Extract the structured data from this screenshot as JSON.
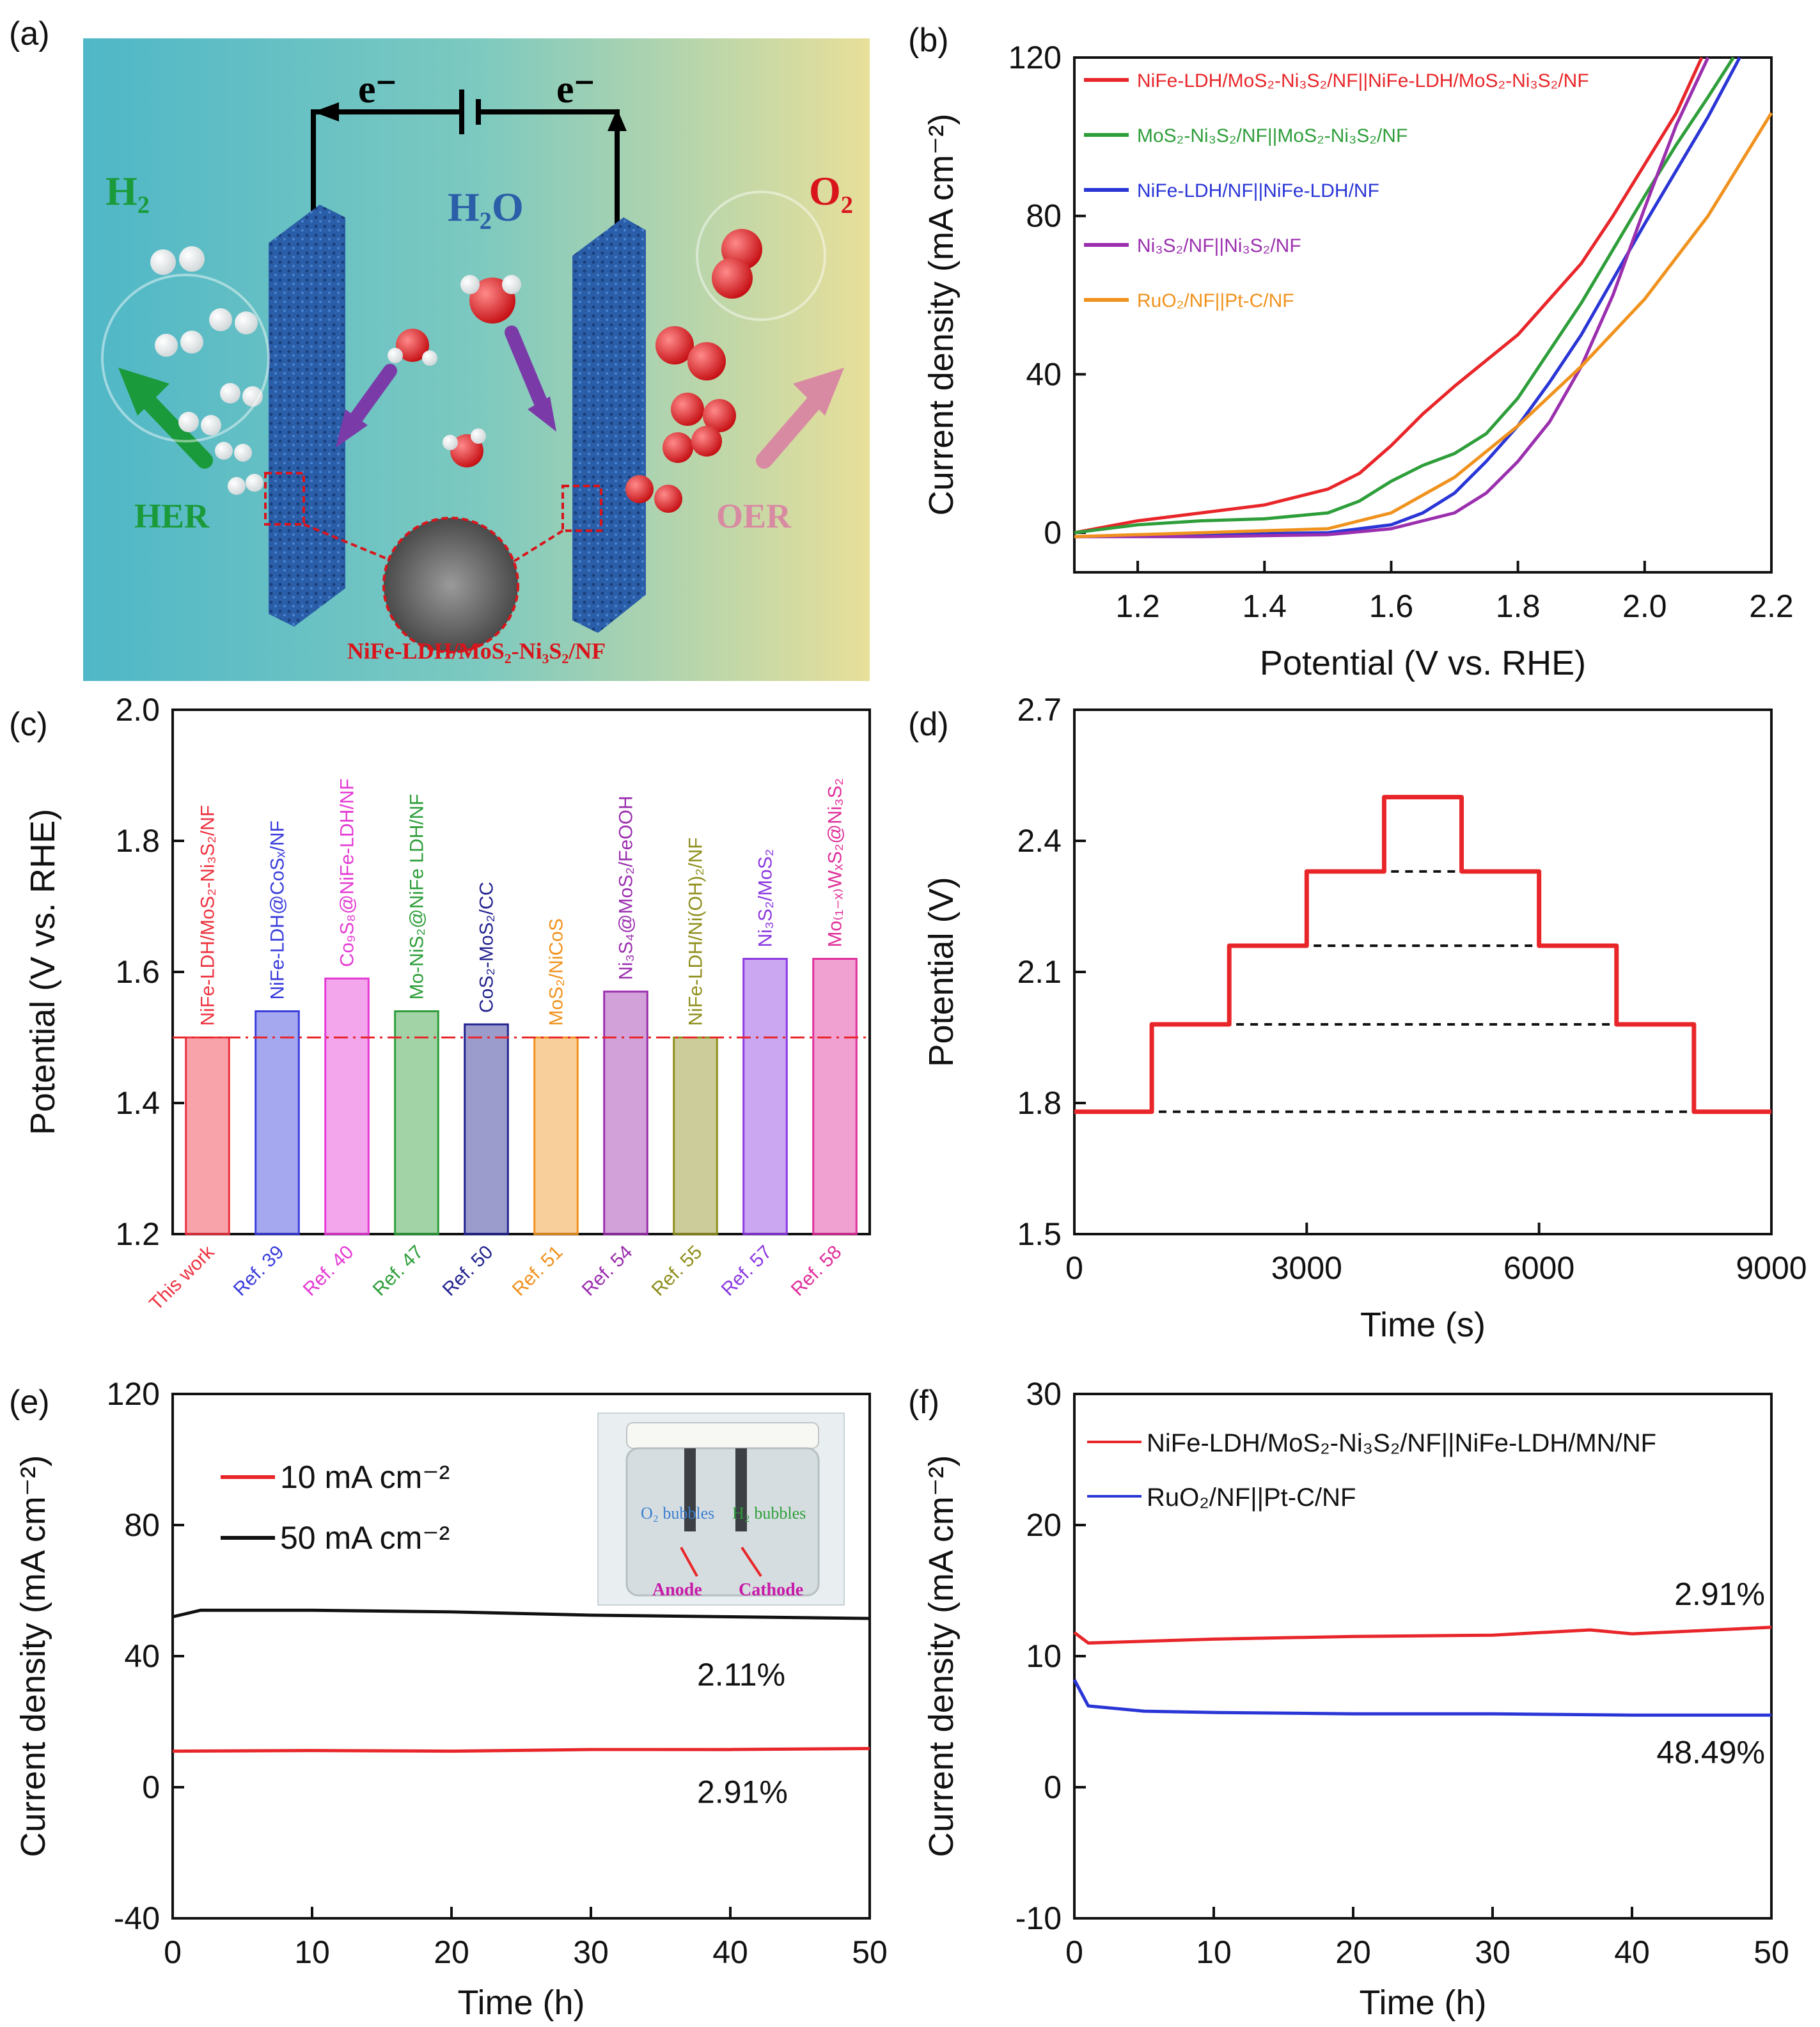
{
  "panel_letters": [
    "(a)",
    "(b)",
    "(c)",
    "(d)",
    "(e)",
    "(f)"
  ],
  "schematic": {
    "e_left": "e⁻",
    "e_right": "e⁻",
    "h2": "H₂",
    "o2": "O₂",
    "h2o": "H₂O",
    "her": "HER",
    "oer": "OER",
    "catalyst": "NiFe-LDH/MoS₂-Ni₃S₂/NF",
    "colors": {
      "bg_left": "#4fb7c7",
      "bg_right": "#e8df9a",
      "electrode": "#2a5ea8",
      "her": "#1a9a3a",
      "oer": "#d98aa3",
      "o2": "#d9141b"
    }
  },
  "chart_data": [
    {
      "id": "b",
      "type": "line",
      "title": "",
      "xlabel": "Potential (V vs. RHE)",
      "ylabel": "Current density (mA cm⁻²)",
      "xlim": [
        1.1,
        2.2
      ],
      "ylim": [
        -10,
        120
      ],
      "xticks": [
        1.2,
        1.4,
        1.6,
        1.8,
        2.0,
        2.2
      ],
      "xtick_labels": [
        "1.2",
        "1.4",
        "1.6",
        "1.8",
        "2.0",
        "2.2"
      ],
      "yticks": [
        0,
        40,
        80,
        120
      ],
      "ytick_labels": [
        "0",
        "40",
        "80",
        "120"
      ],
      "legend_position": "top-left",
      "series": [
        {
          "name": "NiFe-LDH/MoS₂-Ni₃S₂/NF||NiFe-LDH/MoS₂-Ni₃S₂/NF",
          "color": "#e8262a",
          "x": [
            1.1,
            1.2,
            1.3,
            1.4,
            1.5,
            1.55,
            1.6,
            1.65,
            1.7,
            1.8,
            1.9,
            1.95,
            2.0,
            2.05,
            2.09
          ],
          "y": [
            0,
            3,
            5,
            7,
            11,
            15,
            22,
            30,
            37,
            50,
            68,
            80,
            93,
            106,
            120
          ]
        },
        {
          "name": "MoS₂-Ni₃S₂/NF||MoS₂-Ni₃S₂/NF",
          "color": "#2e9e3a",
          "x": [
            1.1,
            1.2,
            1.3,
            1.4,
            1.5,
            1.55,
            1.6,
            1.65,
            1.7,
            1.75,
            1.8,
            1.9,
            2.0,
            2.05,
            2.1,
            2.14
          ],
          "y": [
            0,
            2,
            3,
            3.5,
            5,
            8,
            13,
            17,
            20,
            25,
            34,
            58,
            85,
            98,
            110,
            120
          ]
        },
        {
          "name": "NiFe-LDH/NF||NiFe-LDH/NF",
          "color": "#2a35d6",
          "x": [
            1.1,
            1.3,
            1.5,
            1.6,
            1.65,
            1.7,
            1.75,
            1.8,
            1.85,
            1.9,
            2.0,
            2.1,
            2.15
          ],
          "y": [
            -1,
            -0.5,
            0,
            2,
            5,
            10,
            18,
            27,
            38,
            50,
            78,
            105,
            120
          ]
        },
        {
          "name": "Ni₃S₂/NF||Ni₃S₂/NF",
          "color": "#9b2fae",
          "x": [
            1.1,
            1.3,
            1.5,
            1.6,
            1.7,
            1.75,
            1.8,
            1.85,
            1.9,
            1.95,
            2.0,
            2.05,
            2.1
          ],
          "y": [
            -1,
            -1,
            -0.5,
            1,
            5,
            10,
            18,
            28,
            42,
            60,
            82,
            103,
            120
          ]
        },
        {
          "name": "RuO₂/NF||Pt-C/NF",
          "color": "#f0921e",
          "x": [
            1.1,
            1.3,
            1.5,
            1.6,
            1.7,
            1.8,
            1.9,
            2.0,
            2.1,
            2.2
          ],
          "y": [
            -1,
            0,
            1,
            5,
            14,
            27,
            42,
            59,
            80,
            106
          ]
        }
      ]
    },
    {
      "id": "c",
      "type": "bar",
      "title": "",
      "xlabel": "",
      "ylabel": "Potential (V vs. RHE)",
      "ylim": [
        1.2,
        2.0
      ],
      "yticks": [
        1.2,
        1.4,
        1.6,
        1.8,
        2.0
      ],
      "ytick_labels": [
        "1.2",
        "1.4",
        "1.6",
        "1.8",
        "2.0"
      ],
      "reference_line": 1.5,
      "categories": [
        "This work",
        "Ref. 39",
        "Ref. 40",
        "Ref. 47",
        "Ref. 50",
        "Ref. 51",
        "Ref. 54",
        "Ref. 55",
        "Ref. 57",
        "Ref. 58"
      ],
      "values": [
        1.5,
        1.54,
        1.59,
        1.54,
        1.52,
        1.5,
        1.57,
        1.5,
        1.62,
        1.62
      ],
      "colors": [
        "#ee3340",
        "#3a3ddb",
        "#e43ad4",
        "#2e9e3a",
        "#23238f",
        "#f0921e",
        "#9b2fae",
        "#8f8f1e",
        "#8b39e0",
        "#e02f9a"
      ],
      "bar_labels": [
        "NiFe-LDH/MoS₂-Ni₃S₂/NF",
        "NiFe-LDH@CoSₓ/NF",
        "Co₉S₈@NiFe-LDH/NF",
        "Mo-NiS₂@NiFe LDH/NF",
        "CoS₂-MoS₂/CC",
        "MoS₂/NiCoS",
        "Ni₃S₄@MoS₂/FeOOH",
        "NiFe-LDH/Ni(OH)₂/NF",
        "Ni₃S₂/MoS₂",
        "Mo₍₁₋ₓ₎WₓS₂@Ni₃S₂"
      ]
    },
    {
      "id": "d",
      "type": "line",
      "title": "",
      "xlabel": "Time (s)",
      "ylabel": "Potential (V)",
      "xlim": [
        0,
        9000
      ],
      "ylim": [
        1.5,
        2.7
      ],
      "xticks": [
        0,
        3000,
        6000,
        9000
      ],
      "xtick_labels": [
        "0",
        "3000",
        "6000",
        "9000"
      ],
      "yticks": [
        1.5,
        1.8,
        2.1,
        2.4,
        2.7
      ],
      "ytick_labels": [
        "1.5",
        "1.8",
        "2.1",
        "2.4",
        "2.7"
      ],
      "series": [
        {
          "name": "step potential",
          "color": "#e8262a",
          "x": [
            0,
            1000,
            1000,
            2000,
            2000,
            3000,
            3000,
            4000,
            4000,
            5000,
            5000,
            6000,
            6000,
            7000,
            7000,
            8000,
            8000,
            9000
          ],
          "y": [
            1.78,
            1.78,
            1.98,
            1.98,
            2.16,
            2.16,
            2.33,
            2.33,
            2.5,
            2.5,
            2.33,
            2.33,
            2.16,
            2.16,
            1.98,
            1.98,
            1.78,
            1.78
          ]
        }
      ],
      "reference_lines": [
        {
          "y": 1.78,
          "x0": 0,
          "x1": 9000
        },
        {
          "y": 1.98,
          "x0": 1000,
          "x1": 8000
        },
        {
          "y": 2.16,
          "x0": 2000,
          "x1": 7000
        },
        {
          "y": 2.33,
          "x0": 3000,
          "x1": 6000
        }
      ]
    },
    {
      "id": "e",
      "type": "line",
      "title": "",
      "xlabel": "Time (h)",
      "ylabel": "Current density (mA cm⁻²)",
      "xlim": [
        0,
        50
      ],
      "ylim": [
        -40,
        120
      ],
      "xticks": [
        0,
        10,
        20,
        30,
        40,
        50
      ],
      "xtick_labels": [
        "0",
        "10",
        "20",
        "30",
        "40",
        "50"
      ],
      "yticks": [
        -40,
        0,
        40,
        80,
        120
      ],
      "ytick_labels": [
        "-40",
        "0",
        "40",
        "80",
        "120"
      ],
      "legend_position": "top-left",
      "series": [
        {
          "name": "10 mA cm⁻²",
          "color": "#e8262a",
          "x": [
            0,
            10,
            20,
            30,
            40,
            50
          ],
          "y": [
            11,
            11.2,
            11,
            11.5,
            11.5,
            11.8
          ],
          "annotation": "2.91%"
        },
        {
          "name": "50 mA cm⁻²",
          "color": "#111111",
          "x": [
            0,
            2,
            10,
            20,
            30,
            40,
            50
          ],
          "y": [
            52,
            54,
            54,
            53.5,
            52.5,
            52,
            51.5
          ],
          "annotation": "2.11%"
        }
      ],
      "inset_labels": {
        "o2": "O₂ bubbles",
        "h2": "H₂ bubbles",
        "anode": "Anode",
        "cathode": "Cathode"
      }
    },
    {
      "id": "f",
      "type": "line",
      "title": "",
      "xlabel": "Time (h)",
      "ylabel": "Current density (mA cm⁻²)",
      "xlim": [
        0,
        50
      ],
      "ylim": [
        -10,
        30
      ],
      "xticks": [
        0,
        10,
        20,
        30,
        40,
        50
      ],
      "xtick_labels": [
        "0",
        "10",
        "20",
        "30",
        "40",
        "50"
      ],
      "yticks": [
        -10,
        0,
        10,
        20,
        30
      ],
      "ytick_labels": [
        "-10",
        "0",
        "10",
        "20",
        "30"
      ],
      "legend_position": "top-left",
      "series": [
        {
          "name": "NiFe-LDH/MoS₂-Ni₃S₂/NF||NiFe-LDH/MN/NF",
          "color": "#e8262a",
          "x": [
            0,
            1,
            10,
            20,
            30,
            37,
            40,
            50
          ],
          "y": [
            11.8,
            11,
            11.3,
            11.5,
            11.6,
            12,
            11.7,
            12.2
          ],
          "annotation": "2.91%"
        },
        {
          "name": "RuO₂/NF||Pt-C/NF",
          "color": "#2a35d6",
          "x": [
            0,
            1,
            5,
            10,
            20,
            30,
            40,
            50
          ],
          "y": [
            8.2,
            6.2,
            5.8,
            5.7,
            5.6,
            5.6,
            5.5,
            5.5
          ],
          "annotation": "48.49%"
        }
      ]
    }
  ]
}
